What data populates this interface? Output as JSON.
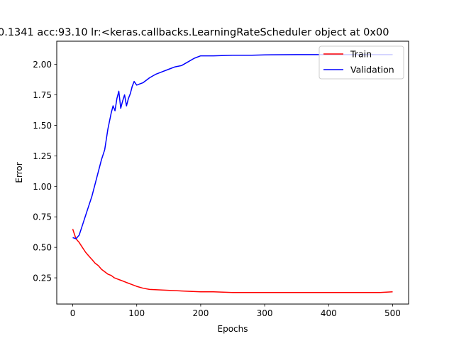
{
  "chart_data": {
    "type": "line",
    "title": "0.1341  acc:93.10  lr:<keras.callbacks.LearningRateScheduler object at 0x00",
    "xlabel": "Epochs",
    "ylabel": "Error",
    "xlim": [
      -25,
      525
    ],
    "ylim": [
      0.035,
      2.19
    ],
    "xticks": [
      0,
      100,
      200,
      300,
      400,
      500
    ],
    "xtick_labels": [
      "0",
      "100",
      "200",
      "300",
      "400",
      "500"
    ],
    "yticks": [
      0.25,
      0.5,
      0.75,
      1.0,
      1.25,
      1.5,
      1.75,
      2.0
    ],
    "ytick_labels": [
      "0.25",
      "0.50",
      "0.75",
      "1.00",
      "1.25",
      "1.50",
      "1.75",
      "2.00"
    ],
    "grid": false,
    "legend_position": "upper right",
    "series": [
      {
        "name": "Train",
        "color": "#ff0000",
        "x": [
          0,
          5,
          10,
          15,
          20,
          25,
          30,
          35,
          40,
          45,
          50,
          55,
          60,
          65,
          70,
          75,
          80,
          85,
          90,
          100,
          110,
          120,
          140,
          160,
          180,
          200,
          220,
          250,
          280,
          300,
          320,
          350,
          380,
          400,
          420,
          450,
          480,
          500
        ],
        "y": [
          0.65,
          0.57,
          0.54,
          0.5,
          0.46,
          0.43,
          0.4,
          0.37,
          0.35,
          0.32,
          0.3,
          0.28,
          0.27,
          0.25,
          0.24,
          0.23,
          0.22,
          0.21,
          0.2,
          0.18,
          0.165,
          0.155,
          0.15,
          0.145,
          0.14,
          0.135,
          0.135,
          0.13,
          0.13,
          0.13,
          0.13,
          0.13,
          0.13,
          0.13,
          0.13,
          0.13,
          0.13,
          0.135
        ]
      },
      {
        "name": "Validation",
        "color": "#0000ff",
        "x": [
          0,
          5,
          10,
          15,
          20,
          25,
          30,
          35,
          40,
          45,
          50,
          55,
          60,
          63,
          66,
          69,
          72,
          75,
          78,
          81,
          84,
          87,
          90,
          93,
          96,
          100,
          105,
          110,
          120,
          130,
          140,
          150,
          160,
          170,
          180,
          190,
          200,
          220,
          250,
          280,
          300,
          350,
          400,
          450,
          500
        ],
        "y": [
          0.58,
          0.57,
          0.6,
          0.68,
          0.76,
          0.84,
          0.92,
          1.02,
          1.12,
          1.22,
          1.3,
          1.47,
          1.6,
          1.66,
          1.62,
          1.72,
          1.78,
          1.64,
          1.7,
          1.75,
          1.66,
          1.72,
          1.76,
          1.82,
          1.86,
          1.83,
          1.84,
          1.85,
          1.89,
          1.92,
          1.94,
          1.96,
          1.98,
          1.99,
          2.02,
          2.05,
          2.07,
          2.07,
          2.075,
          2.075,
          2.078,
          2.08,
          2.08,
          2.08,
          2.08
        ]
      }
    ]
  }
}
